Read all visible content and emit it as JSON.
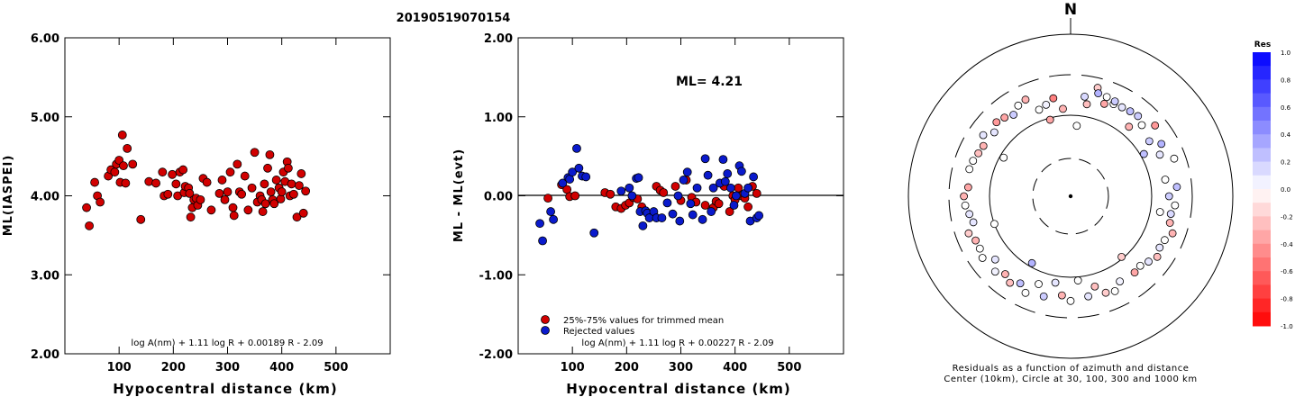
{
  "title": "20190519070154",
  "colors": {
    "red_point": "#d10000",
    "blue_point": "#0a1acc",
    "axis": "#000000",
    "scale_red": "#ff0000",
    "scale_blue": "#0000ff"
  },
  "chart_data": [
    {
      "type": "scatter",
      "id": "ml_vs_distance",
      "xlabel": "Hypocentral distance (km)",
      "ylabel": "ML(IASPEI)",
      "xlim": [
        0,
        600
      ],
      "ylim": [
        2.0,
        6.0
      ],
      "x_ticks": [
        100,
        200,
        300,
        400,
        500
      ],
      "y_ticks": [
        2.0,
        3.0,
        4.0,
        5.0,
        6.0
      ],
      "y_tick_labels": [
        "2.00",
        "3.00",
        "4.00",
        "5.00",
        "6.00"
      ],
      "formula": "log A(nm) + 1.11 log R + 0.00189 R - 2.09",
      "points": [
        [
          40,
          3.85
        ],
        [
          45,
          3.62
        ],
        [
          55,
          4.17
        ],
        [
          60,
          4.0
        ],
        [
          65,
          3.92
        ],
        [
          80,
          4.25
        ],
        [
          85,
          4.33
        ],
        [
          92,
          4.3
        ],
        [
          95,
          4.4
        ],
        [
          100,
          4.45
        ],
        [
          102,
          4.17
        ],
        [
          106,
          4.77
        ],
        [
          108,
          4.38
        ],
        [
          112,
          4.16
        ],
        [
          115,
          4.6
        ],
        [
          125,
          4.4
        ],
        [
          140,
          3.7
        ],
        [
          155,
          4.18
        ],
        [
          168,
          4.16
        ],
        [
          180,
          4.3
        ],
        [
          183,
          4.0
        ],
        [
          190,
          4.02
        ],
        [
          198,
          4.27
        ],
        [
          205,
          4.15
        ],
        [
          208,
          4.0
        ],
        [
          212,
          4.3
        ],
        [
          218,
          4.33
        ],
        [
          220,
          4.04
        ],
        [
          222,
          4.12
        ],
        [
          228,
          4.1
        ],
        [
          230,
          4.03
        ],
        [
          232,
          3.73
        ],
        [
          235,
          3.85
        ],
        [
          238,
          3.95
        ],
        [
          242,
          3.97
        ],
        [
          245,
          3.88
        ],
        [
          250,
          3.95
        ],
        [
          255,
          4.22
        ],
        [
          262,
          4.17
        ],
        [
          270,
          3.82
        ],
        [
          285,
          4.03
        ],
        [
          290,
          4.2
        ],
        [
          295,
          3.95
        ],
        [
          300,
          4.05
        ],
        [
          305,
          4.3
        ],
        [
          310,
          3.85
        ],
        [
          312,
          3.75
        ],
        [
          318,
          4.4
        ],
        [
          322,
          4.05
        ],
        [
          326,
          4.02
        ],
        [
          332,
          4.25
        ],
        [
          338,
          3.82
        ],
        [
          345,
          4.1
        ],
        [
          350,
          4.55
        ],
        [
          355,
          3.92
        ],
        [
          360,
          4.0
        ],
        [
          363,
          3.95
        ],
        [
          365,
          3.8
        ],
        [
          368,
          4.15
        ],
        [
          370,
          3.9
        ],
        [
          374,
          4.35
        ],
        [
          378,
          4.52
        ],
        [
          380,
          4.05
        ],
        [
          383,
          3.95
        ],
        [
          386,
          3.9
        ],
        [
          390,
          4.2
        ],
        [
          395,
          4.1
        ],
        [
          398,
          3.96
        ],
        [
          400,
          4.05
        ],
        [
          403,
          4.3
        ],
        [
          406,
          4.18
        ],
        [
          410,
          4.43
        ],
        [
          412,
          4.35
        ],
        [
          415,
          4.0
        ],
        [
          418,
          4.15
        ],
        [
          422,
          4.02
        ],
        [
          428,
          3.73
        ],
        [
          432,
          4.13
        ],
        [
          436,
          4.28
        ],
        [
          440,
          3.78
        ],
        [
          444,
          4.06
        ]
      ]
    },
    {
      "type": "scatter",
      "id": "residual_vs_distance",
      "xlabel": "Hypocentral distance (km)",
      "ylabel": "ML - ML(evt)",
      "xlim": [
        0,
        600
      ],
      "ylim": [
        -2.0,
        2.0
      ],
      "x_ticks": [
        100,
        200,
        300,
        400,
        500
      ],
      "y_ticks": [
        -2.0,
        -1.0,
        0.0,
        1.0,
        2.0
      ],
      "y_tick_labels": [
        "-2.00",
        "-1.00",
        "0.00",
        "1.00",
        "2.00"
      ],
      "annotation": "ML= 4.21",
      "legend": [
        "25%-75% values for trimmed mean",
        "Rejected values"
      ],
      "formula": "log A(nm) + 1.11 log R + 0.00227 R - 2.09",
      "series": [
        {
          "name": "25%-75% values for trimmed mean",
          "color": "#d10000",
          "points": [
            [
              55,
              -0.03
            ],
            [
              80,
              0.14
            ],
            [
              90,
              0.08
            ],
            [
              95,
              -0.01
            ],
            [
              105,
              0.0
            ],
            [
              160,
              0.04
            ],
            [
              170,
              0.02
            ],
            [
              180,
              -0.14
            ],
            [
              190,
              -0.16
            ],
            [
              198,
              -0.12
            ],
            [
              205,
              -0.09
            ],
            [
              212,
              -0.02
            ],
            [
              220,
              -0.04
            ],
            [
              228,
              -0.14
            ],
            [
              255,
              0.12
            ],
            [
              262,
              0.07
            ],
            [
              268,
              0.04
            ],
            [
              290,
              0.12
            ],
            [
              300,
              -0.06
            ],
            [
              310,
              0.2
            ],
            [
              320,
              -0.02
            ],
            [
              328,
              -0.08
            ],
            [
              345,
              -0.12
            ],
            [
              360,
              -0.15
            ],
            [
              365,
              -0.07
            ],
            [
              370,
              -0.1
            ],
            [
              380,
              0.12
            ],
            [
              390,
              -0.2
            ],
            [
              396,
              0.0
            ],
            [
              400,
              -0.05
            ],
            [
              406,
              0.1
            ],
            [
              412,
              0.0
            ],
            [
              418,
              -0.03
            ],
            [
              424,
              -0.14
            ],
            [
              432,
              0.12
            ],
            [
              440,
              0.03
            ]
          ]
        },
        {
          "name": "Rejected values",
          "color": "#0a1acc",
          "points": [
            [
              40,
              -0.35
            ],
            [
              45,
              -0.57
            ],
            [
              60,
              -0.2
            ],
            [
              65,
              -0.3
            ],
            [
              82,
              0.16
            ],
            [
              92,
              0.23
            ],
            [
              95,
              0.21
            ],
            [
              100,
              0.3
            ],
            [
              108,
              0.6
            ],
            [
              112,
              0.35
            ],
            [
              118,
              0.25
            ],
            [
              125,
              0.24
            ],
            [
              140,
              -0.47
            ],
            [
              190,
              0.06
            ],
            [
              205,
              0.1
            ],
            [
              210,
              0.0
            ],
            [
              218,
              0.22
            ],
            [
              222,
              0.23
            ],
            [
              225,
              -0.2
            ],
            [
              230,
              -0.38
            ],
            [
              235,
              -0.19
            ],
            [
              238,
              -0.22
            ],
            [
              242,
              -0.28
            ],
            [
              250,
              -0.2
            ],
            [
              255,
              -0.28
            ],
            [
              265,
              -0.28
            ],
            [
              275,
              -0.09
            ],
            [
              285,
              -0.23
            ],
            [
              295,
              0.0
            ],
            [
              298,
              -0.32
            ],
            [
              305,
              0.2
            ],
            [
              312,
              0.3
            ],
            [
              318,
              -0.1
            ],
            [
              322,
              -0.24
            ],
            [
              330,
              0.1
            ],
            [
              340,
              -0.3
            ],
            [
              345,
              0.47
            ],
            [
              350,
              0.26
            ],
            [
              356,
              -0.2
            ],
            [
              360,
              0.1
            ],
            [
              372,
              0.16
            ],
            [
              378,
              0.46
            ],
            [
              382,
              0.18
            ],
            [
              386,
              0.28
            ],
            [
              392,
              0.1
            ],
            [
              398,
              -0.12
            ],
            [
              402,
              0.0
            ],
            [
              408,
              0.38
            ],
            [
              412,
              0.31
            ],
            [
              418,
              0.03
            ],
            [
              424,
              0.1
            ],
            [
              428,
              -0.32
            ],
            [
              434,
              0.24
            ],
            [
              440,
              -0.28
            ],
            [
              444,
              -0.25
            ]
          ]
        }
      ]
    },
    {
      "type": "scatter",
      "id": "azimuth_distance_residuals",
      "north_label": "N",
      "caption_line1": "Residuals as a function of azimuth and distance",
      "caption_line2": "Center (10km), Circle at 30, 100, 300 and 1000 km",
      "rings_km": [
        10,
        30,
        100,
        300,
        1000
      ],
      "points_az_dist_res": [
        [
          5,
          75,
          0.0
        ],
        [
          14,
          230,
          -0.2
        ],
        [
          355,
          120,
          -0.3
        ],
        [
          340,
          135,
          0.0
        ],
        [
          10,
          140,
          -0.25
        ],
        [
          350,
          165,
          -0.5
        ],
        [
          345,
          145,
          0.05
        ],
        [
          8,
          170,
          0.15
        ],
        [
          20,
          160,
          -0.35
        ],
        [
          25,
          175,
          0.0
        ],
        [
          40,
          190,
          0.2
        ],
        [
          50,
          220,
          -0.4
        ],
        [
          60,
          190,
          0.3
        ],
        [
          70,
          220,
          0.0
        ],
        [
          85,
          200,
          0.25
        ],
        [
          95,
          190,
          0.0
        ],
        [
          110,
          210,
          -0.3
        ],
        [
          120,
          180,
          0.1
        ],
        [
          135,
          160,
          0.0
        ],
        [
          140,
          165,
          -0.35
        ],
        [
          150,
          160,
          0.05
        ],
        [
          165,
          140,
          -0.25
        ],
        [
          175,
          110,
          0.0
        ],
        [
          190,
          120,
          0.1
        ],
        [
          200,
          140,
          0.0
        ],
        [
          210,
          170,
          0.25
        ],
        [
          220,
          175,
          -0.3
        ],
        [
          230,
          160,
          0.1
        ],
        [
          240,
          190,
          0.0
        ],
        [
          250,
          210,
          -0.2
        ],
        [
          260,
          180,
          0.1
        ],
        [
          270,
          200,
          -0.3
        ],
        [
          285,
          190,
          0.0
        ],
        [
          300,
          170,
          -0.3
        ],
        [
          305,
          200,
          0.1
        ],
        [
          315,
          190,
          -0.4
        ],
        [
          325,
          165,
          0.2
        ],
        [
          330,
          190,
          0.0
        ],
        [
          335,
          200,
          -0.3
        ],
        [
          345,
          95,
          -0.35
        ],
        [
          300,
          90,
          0.0
        ],
        [
          60,
          110,
          0.25
        ],
        [
          100,
          130,
          0.0
        ],
        [
          140,
          95,
          -0.2
        ],
        [
          210,
          90,
          0.3
        ],
        [
          250,
          100,
          0.0
        ],
        [
          40,
          130,
          -0.3
        ],
        [
          15,
          200,
          0.3
        ],
        [
          20,
          195,
          0.0
        ],
        [
          25,
          190,
          0.2
        ],
        [
          30,
          180,
          0.1
        ],
        [
          35,
          185,
          0.25
        ],
        [
          45,
          170,
          0.0
        ],
        [
          55,
          150,
          0.2
        ],
        [
          65,
          160,
          0.1
        ],
        [
          80,
          150,
          0.0
        ],
        [
          90,
          160,
          0.2
        ],
        [
          100,
          175,
          0.15
        ],
        [
          105,
          180,
          -0.3
        ],
        [
          115,
          185,
          0.0
        ],
        [
          125,
          195,
          -0.25
        ],
        [
          130,
          175,
          0.1
        ],
        [
          155,
          190,
          0.0
        ],
        [
          160,
          180,
          -0.2
        ],
        [
          170,
          175,
          0.1
        ],
        [
          180,
          190,
          0.0
        ],
        [
          185,
          165,
          -0.3
        ],
        [
          195,
          185,
          0.2
        ],
        [
          205,
          200,
          0.0
        ],
        [
          215,
          195,
          -0.25
        ],
        [
          225,
          200,
          0.05
        ],
        [
          235,
          205,
          0.0
        ],
        [
          245,
          190,
          -0.3
        ],
        [
          255,
          170,
          0.1
        ],
        [
          265,
          195,
          0.0
        ],
        [
          275,
          180,
          -0.35
        ],
        [
          290,
          185,
          0.0
        ],
        [
          295,
          175,
          -0.25
        ],
        [
          310,
          165,
          0.1
        ],
        [
          320,
          180,
          -0.35
        ]
      ]
    }
  ],
  "color_scale": {
    "title": "Res",
    "tick_labels": [
      "1.0",
      "0.8",
      "0.6",
      "0.4",
      "0.2",
      "0.0",
      "-0.2",
      "-0.4",
      "-0.6",
      "-0.8",
      "-1.0"
    ]
  }
}
